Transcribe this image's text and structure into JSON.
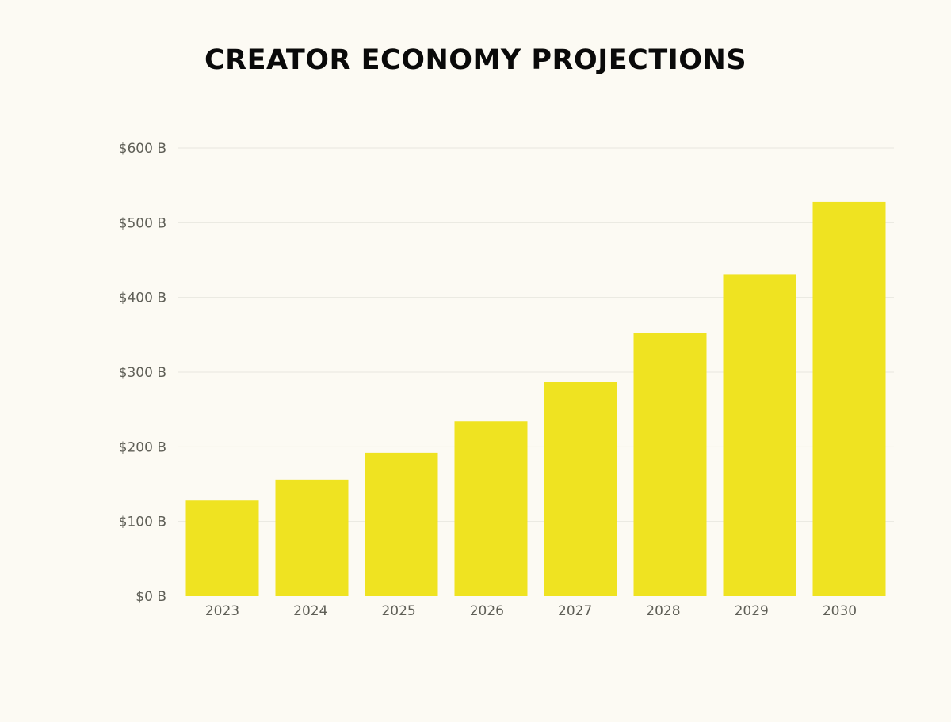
{
  "colors": {
    "background": "#fcfaf3",
    "bar": "#efe321",
    "grid": "#e9e7df",
    "tick_text": "#5f5f57",
    "title": "#0a0a0a"
  },
  "chart_data": {
    "type": "bar",
    "title": "CREATOR ECONOMY PROJECTIONS",
    "xlabel": "",
    "ylabel": "",
    "categories": [
      "2023",
      "2024",
      "2025",
      "2026",
      "2027",
      "2028",
      "2029",
      "2030"
    ],
    "values": [
      128,
      156,
      192,
      234,
      287,
      353,
      431,
      528
    ],
    "ylim": [
      0,
      600
    ],
    "yticks": [
      0,
      100,
      200,
      300,
      400,
      500,
      600
    ],
    "ytick_labels": [
      "$0 B",
      "$100 B",
      "$200 B",
      "$300 B",
      "$400 B",
      "$500 B",
      "$600 B"
    ],
    "grid": true,
    "legend": "none"
  }
}
